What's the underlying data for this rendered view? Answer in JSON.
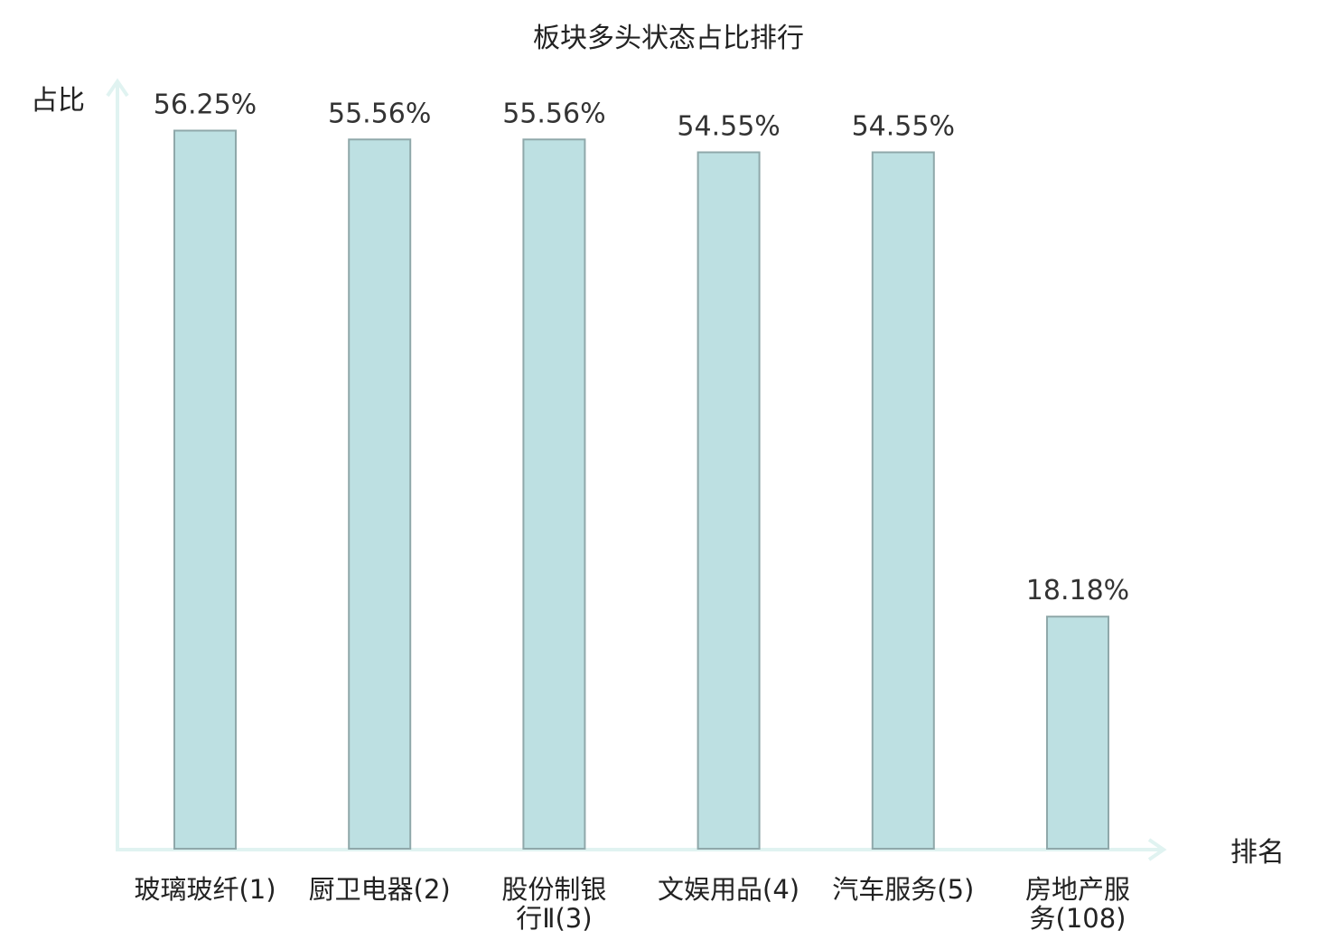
{
  "chart_data": {
    "type": "bar",
    "title": "板块多头状态占比排行",
    "ylabel": "占比",
    "xlabel": "排名",
    "categories": [
      [
        "玻璃玻纤(1)"
      ],
      [
        "厨卫电器(2)"
      ],
      [
        "股份制银",
        "行Ⅱ(3)"
      ],
      [
        "文娱用品(4)"
      ],
      [
        "汽车服务(5)"
      ],
      [
        "房地产服",
        "务(108)"
      ]
    ],
    "values": [
      56.25,
      55.56,
      55.56,
      54.55,
      54.55,
      18.18
    ],
    "value_labels": [
      "56.25%",
      "55.56%",
      "55.56%",
      "54.55%",
      "54.55%",
      "18.18%"
    ],
    "highlight_index": 5,
    "grid": false,
    "legend": "none",
    "colors": {
      "bar_fill": "#bde0e2",
      "bar_stroke": "#8fa8aa",
      "axis": "#e0f3f1",
      "text": "#222222",
      "value_text": "#333333",
      "highlight_text": "#e8141b"
    }
  }
}
